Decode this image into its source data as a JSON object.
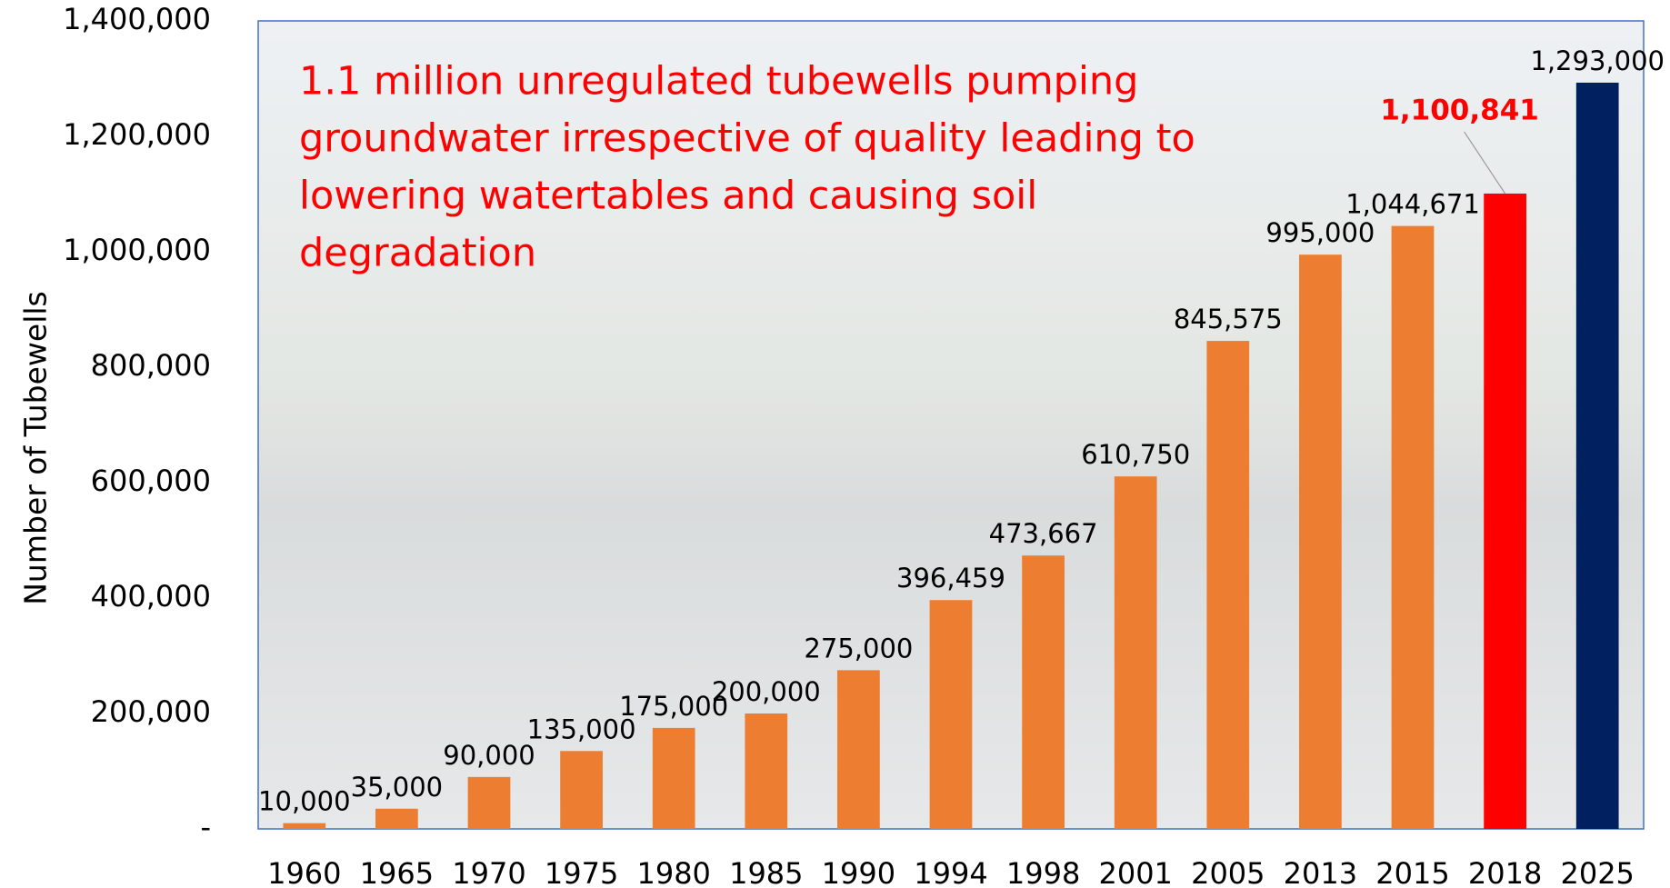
{
  "chart_data": {
    "type": "bar",
    "annotation": [
      "1.1 million unregulated tubewells pumping",
      "groundwater irrespective of quality leading to",
      "lowering watertables and causing soil",
      "degradation"
    ],
    "y_label": "Number of Tubewells",
    "categories": [
      "1960",
      "1965",
      "1970",
      "1975",
      "1980",
      "1985",
      "1990",
      "1994",
      "1998",
      "2001",
      "2005",
      "2013",
      "2015",
      "2018",
      "2025"
    ],
    "values": [
      10000,
      35000,
      90000,
      135000,
      175000,
      200000,
      275000,
      396459,
      473667,
      610750,
      845575,
      995000,
      1044671,
      1100841,
      1293000
    ],
    "value_labels": [
      "10,000",
      "35,000",
      "90,000",
      "135,000",
      "175,000",
      "200,000",
      "275,000",
      "396,459",
      "473,667",
      "610,750",
      "845,575",
      "995,000",
      "1,044,671",
      "1,100,841",
      "1,293,000"
    ],
    "colors": [
      "#ed7d31",
      "#ed7d31",
      "#ed7d31",
      "#ed7d31",
      "#ed7d31",
      "#ed7d31",
      "#ed7d31",
      "#ed7d31",
      "#ed7d31",
      "#ed7d31",
      "#ed7d31",
      "#ed7d31",
      "#ed7d31",
      "#ff0000",
      "#002060"
    ],
    "ylim": [
      0,
      1400000
    ],
    "yticks": [
      {
        "value": 0,
        "label": "-"
      },
      {
        "value": 200000,
        "label": "200,000"
      },
      {
        "value": 400000,
        "label": "400,000"
      },
      {
        "value": 600000,
        "label": "600,000"
      },
      {
        "value": 800000,
        "label": "800,000"
      },
      {
        "value": 1000000,
        "label": "1,000,000"
      },
      {
        "value": 1200000,
        "label": "1,200,000"
      },
      {
        "value": 1400000,
        "label": "1,400,000"
      }
    ],
    "grid": false
  }
}
